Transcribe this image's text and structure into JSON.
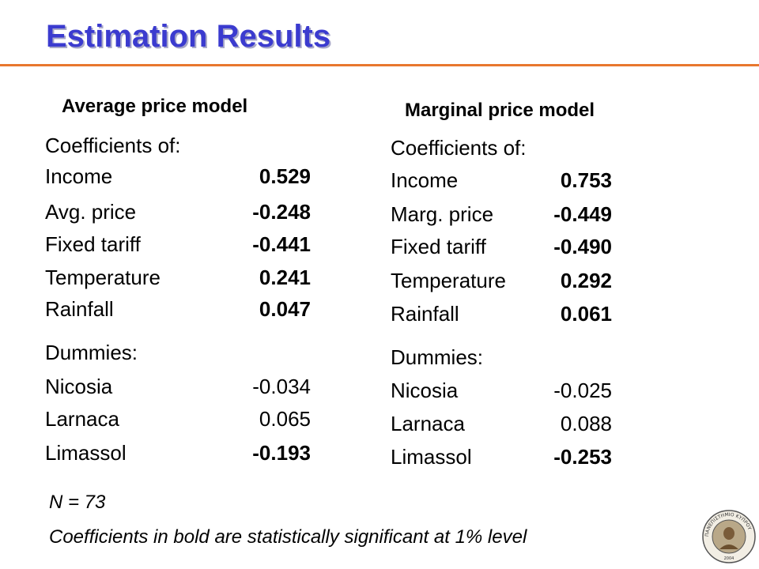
{
  "title": "Estimation Results",
  "colors": {
    "title": "#3b3bcf",
    "rule": "#e8772e"
  },
  "models": [
    {
      "title": "Average price model",
      "coef_header": "Coefficients of:",
      "coefficients": [
        {
          "label": "Income",
          "value": "0.529",
          "bold": true
        },
        {
          "label": "Avg. price",
          "value": "-0.248",
          "bold": true
        },
        {
          "label": "Fixed tariff",
          "value": "-0.441",
          "bold": true
        },
        {
          "label": "Temperature",
          "value": "0.241",
          "bold": true
        },
        {
          "label": "Rainfall",
          "value": "0.047",
          "bold": true
        }
      ],
      "dummies_header": "Dummies:",
      "dummies": [
        {
          "label": "Nicosia",
          "value": "-0.034",
          "bold": false
        },
        {
          "label": "Larnaca",
          "value": "0.065",
          "bold": false
        },
        {
          "label": "Limassol",
          "value": "-0.193",
          "bold": true
        }
      ]
    },
    {
      "title": "Marginal price model",
      "coef_header": "Coefficients of:",
      "coefficients": [
        {
          "label": "Income",
          "value": "0.753",
          "bold": true
        },
        {
          "label": "Marg. price",
          "value": "-0.449",
          "bold": true
        },
        {
          "label": "Fixed tariff",
          "value": "-0.490",
          "bold": true
        },
        {
          "label": "Temperature",
          "value": "0.292",
          "bold": true
        },
        {
          "label": "Rainfall",
          "value": "0.061",
          "bold": true
        }
      ],
      "dummies_header": "Dummies:",
      "dummies": [
        {
          "label": "Nicosia",
          "value": "-0.025",
          "bold": false
        },
        {
          "label": "Larnaca",
          "value": "0.088",
          "bold": false
        },
        {
          "label": "Limassol",
          "value": "-0.253",
          "bold": true
        }
      ]
    }
  ],
  "notes": {
    "n": "N = 73",
    "significance": "Coefficients in bold are statistically significant at 1% level"
  },
  "logo": {
    "icon": "university-seal-icon",
    "text": "ΠΑΝΕΠΙΣΤΗΜΙΟ ΚΥΠΡΟΥ",
    "year": "2004"
  }
}
